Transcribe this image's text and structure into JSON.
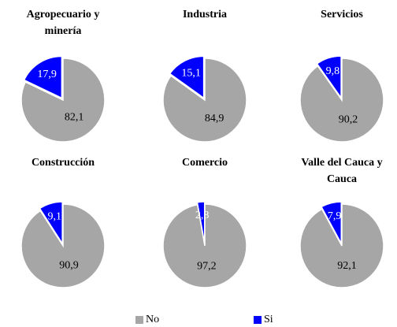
{
  "chart_data": [
    {
      "type": "pie",
      "title": "Agropecuario y minería",
      "categories": [
        "No",
        "Si"
      ],
      "values": [
        82.1,
        17.9
      ],
      "value_labels": [
        "82,1",
        "17,9"
      ],
      "colors": [
        "#a6a6a6",
        "#0000ff"
      ]
    },
    {
      "type": "pie",
      "title": "Industria",
      "categories": [
        "No",
        "Si"
      ],
      "values": [
        84.9,
        15.1
      ],
      "value_labels": [
        "84,9",
        "15,1"
      ],
      "colors": [
        "#a6a6a6",
        "#0000ff"
      ]
    },
    {
      "type": "pie",
      "title": "Servicios",
      "categories": [
        "No",
        "Si"
      ],
      "values": [
        90.2,
        9.8
      ],
      "value_labels": [
        "90,2",
        "9,8"
      ],
      "colors": [
        "#a6a6a6",
        "#0000ff"
      ]
    },
    {
      "type": "pie",
      "title": "Construcción",
      "categories": [
        "No",
        "Si"
      ],
      "values": [
        90.9,
        9.1
      ],
      "value_labels": [
        "90,9",
        "9,1"
      ],
      "colors": [
        "#a6a6a6",
        "#0000ff"
      ]
    },
    {
      "type": "pie",
      "title": "Comercio",
      "categories": [
        "No",
        "Si"
      ],
      "values": [
        97.2,
        2.8
      ],
      "value_labels": [
        "97,2",
        "2,8"
      ],
      "colors": [
        "#a6a6a6",
        "#0000ff"
      ]
    },
    {
      "type": "pie",
      "title": "Valle del Cauca y Cauca",
      "categories": [
        "No",
        "Si"
      ],
      "values": [
        92.1,
        7.9
      ],
      "value_labels": [
        "92,1",
        "7,9"
      ],
      "colors": [
        "#a6a6a6",
        "#0000ff"
      ]
    }
  ]
}
